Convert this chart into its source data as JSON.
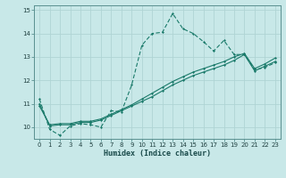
{
  "xlabel": "Humidex (Indice chaleur)",
  "bg_color": "#c8e8e8",
  "grid_color": "#afd4d4",
  "line_color": "#1a7a6a",
  "xlim": [
    -0.5,
    23.5
  ],
  "ylim": [
    9.5,
    15.2
  ],
  "xticks": [
    0,
    1,
    2,
    3,
    4,
    5,
    6,
    7,
    8,
    9,
    10,
    11,
    12,
    13,
    14,
    15,
    16,
    17,
    18,
    19,
    20,
    21,
    22,
    23
  ],
  "yticks": [
    10,
    11,
    12,
    13,
    14,
    15
  ],
  "curve1_x": [
    0,
    1,
    2,
    3,
    4,
    5,
    6,
    7,
    8,
    9,
    10,
    11,
    12,
    13,
    14,
    15,
    16,
    17,
    18,
    19,
    20,
    21,
    22,
    23
  ],
  "curve1_y": [
    11.2,
    9.9,
    9.65,
    10.05,
    10.15,
    10.1,
    10.0,
    10.7,
    10.65,
    11.8,
    13.5,
    14.0,
    14.05,
    14.85,
    14.2,
    14.0,
    13.65,
    13.25,
    13.7,
    13.1,
    13.1,
    12.45,
    12.55,
    12.75
  ],
  "curve2_x": [
    0,
    1,
    2,
    3,
    4,
    5,
    6,
    7,
    8,
    9,
    10,
    11,
    12,
    13,
    14,
    15,
    16,
    17,
    18,
    19,
    20,
    21,
    22,
    23
  ],
  "curve2_y": [
    11.0,
    10.05,
    10.1,
    10.1,
    10.2,
    10.2,
    10.3,
    10.5,
    10.7,
    10.9,
    11.1,
    11.3,
    11.55,
    11.8,
    12.0,
    12.2,
    12.35,
    12.5,
    12.65,
    12.85,
    13.1,
    12.4,
    12.6,
    12.8
  ],
  "curve3_x": [
    0,
    1,
    2,
    3,
    4,
    5,
    6,
    7,
    8,
    9,
    10,
    11,
    12,
    13,
    14,
    15,
    16,
    17,
    18,
    19,
    20,
    21,
    22,
    23
  ],
  "curve3_y": [
    10.9,
    10.1,
    10.15,
    10.15,
    10.25,
    10.25,
    10.35,
    10.55,
    10.75,
    10.95,
    11.2,
    11.45,
    11.7,
    11.95,
    12.15,
    12.35,
    12.5,
    12.65,
    12.8,
    13.0,
    13.15,
    12.5,
    12.7,
    12.95
  ]
}
